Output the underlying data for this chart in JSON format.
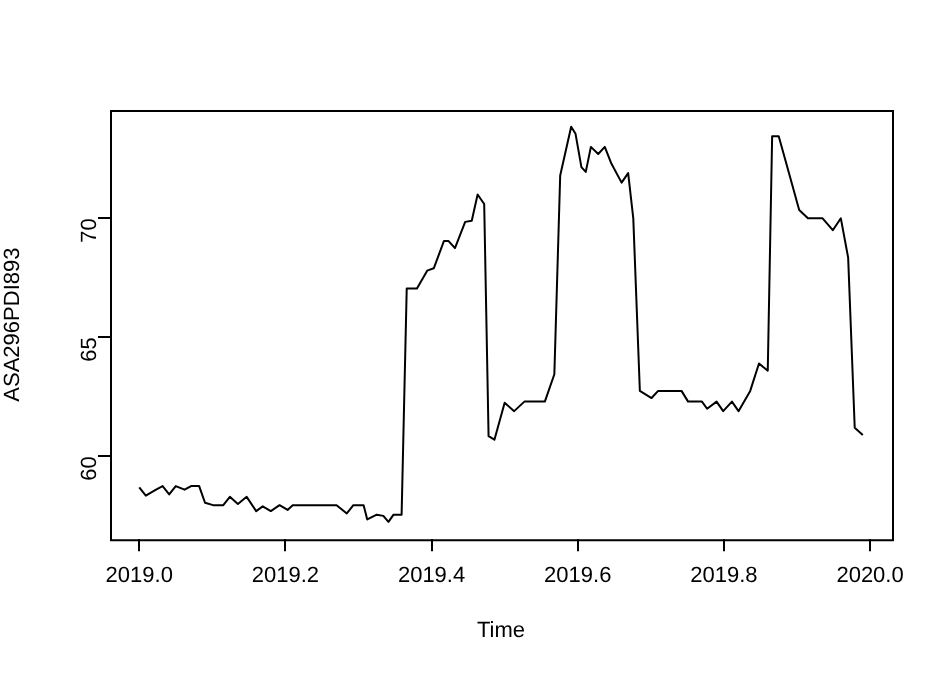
{
  "chart_data": {
    "type": "line",
    "xlabel": "Time",
    "ylabel": "ASA296PDI893",
    "color": "#000000",
    "marker": "none",
    "x": [
      2019.0,
      2019.009,
      2019.023,
      2019.032,
      2019.041,
      2019.05,
      2019.062,
      2019.071,
      2019.082,
      2019.09,
      2019.101,
      2019.115,
      2019.124,
      2019.135,
      2019.147,
      2019.16,
      2019.169,
      2019.18,
      2019.192,
      2019.203,
      2019.21,
      2019.27,
      2019.284,
      2019.293,
      2019.307,
      2019.312,
      2019.325,
      2019.334,
      2019.341,
      2019.348,
      2019.359,
      2019.366,
      2019.38,
      2019.394,
      2019.403,
      2019.417,
      2019.423,
      2019.432,
      2019.446,
      2019.455,
      2019.463,
      2019.472,
      2019.478,
      2019.486,
      2019.5,
      2019.513,
      2019.527,
      2019.555,
      2019.568,
      2019.576,
      2019.591,
      2019.597,
      2019.605,
      2019.611,
      2019.618,
      2019.628,
      2019.637,
      2019.646,
      2019.66,
      2019.669,
      2019.676,
      2019.685,
      2019.701,
      2019.71,
      2019.742,
      2019.751,
      2019.77,
      2019.777,
      2019.79,
      2019.799,
      2019.811,
      2019.82,
      2019.836,
      2019.848,
      2019.86,
      2019.866,
      2019.875,
      2019.889,
      2019.903,
      2019.915,
      2019.935,
      2019.949,
      2019.96,
      2019.97,
      2019.979,
      2019.99
    ],
    "values": [
      58.7,
      58.35,
      58.6,
      58.75,
      58.4,
      58.75,
      58.6,
      58.75,
      58.75,
      58.05,
      57.95,
      57.95,
      58.3,
      58.0,
      58.3,
      57.7,
      57.9,
      57.7,
      57.95,
      57.75,
      57.95,
      57.95,
      57.6,
      57.95,
      57.95,
      57.35,
      57.55,
      57.5,
      57.25,
      57.55,
      57.55,
      67.05,
      67.05,
      67.8,
      67.9,
      69.05,
      69.05,
      68.75,
      69.85,
      69.9,
      71.0,
      70.6,
      60.85,
      60.7,
      62.25,
      61.9,
      62.3,
      62.3,
      63.45,
      71.8,
      73.85,
      73.55,
      72.15,
      71.95,
      73.0,
      72.7,
      73.0,
      72.3,
      71.5,
      71.9,
      70.0,
      62.75,
      62.45,
      62.75,
      62.75,
      62.3,
      62.3,
      62.0,
      62.3,
      61.9,
      62.3,
      61.9,
      62.75,
      63.9,
      63.6,
      73.45,
      73.45,
      71.9,
      70.35,
      70.0,
      70.0,
      69.5,
      70.0,
      68.35,
      61.2,
      60.9
    ],
    "xlim": [
      2018.96,
      2020.03
    ],
    "xticks": [
      {
        "value": 2019,
        "label": "2019.0"
      },
      2019.2,
      2019.4,
      2019.6,
      2019.8,
      {
        "value": 2020,
        "label": "2020.0"
      }
    ],
    "ylim": [
      56.52,
      74.55
    ],
    "yticks": [
      60,
      65,
      70
    ]
  }
}
